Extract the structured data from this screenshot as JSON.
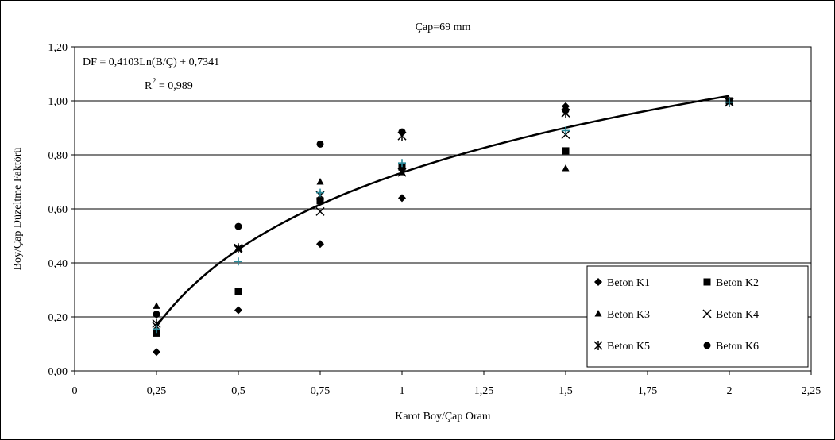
{
  "chart_data": {
    "type": "scatter",
    "title": "Çap=69 mm",
    "xlabel": "Karot Boy/Çap Oranı",
    "ylabel": "Boy/Çap Düzeltme Faktörü",
    "xlim": [
      0,
      2.25
    ],
    "ylim": [
      0,
      1.2
    ],
    "x_ticks": [
      0,
      0.25,
      0.5,
      0.75,
      1,
      1.25,
      1.5,
      1.75,
      2,
      2.25
    ],
    "x_tick_labels": [
      "0",
      "0,25",
      "0,5",
      "0,75",
      "1",
      "1,25",
      "1,5",
      "1,75",
      "2",
      "2,25"
    ],
    "y_ticks": [
      0,
      0.2,
      0.4,
      0.6,
      0.8,
      1.0,
      1.2
    ],
    "y_tick_labels": [
      "0,00",
      "0,20",
      "0,40",
      "0,60",
      "0,80",
      "1,00",
      "1,20"
    ],
    "grid": "horizontal",
    "legend_position": "bottom-right",
    "equation": "DF = 0,4103Ln(B/Ç) + 0,7341",
    "r2_prefix": "R",
    "r2_sup": "2",
    "r2_value": " = 0,989",
    "trendline": {
      "type": "log",
      "a": 0.4103,
      "b": 0.7341,
      "x_from": 0.25,
      "x_to": 2
    },
    "series": [
      {
        "name": "Beton K1",
        "marker": "diamond",
        "x": [
          0.25,
          0.5,
          0.75,
          1,
          1.5,
          2
        ],
        "y": [
          0.07,
          0.225,
          0.47,
          0.64,
          0.98,
          1.0
        ]
      },
      {
        "name": "Beton K2",
        "marker": "square",
        "x": [
          0.25,
          0.5,
          0.75,
          1,
          1.5,
          2
        ],
        "y": [
          0.14,
          0.295,
          0.63,
          0.755,
          0.815,
          1.0
        ]
      },
      {
        "name": "Beton K3",
        "marker": "triangle",
        "x": [
          0.25,
          0.5,
          0.75,
          1,
          1.5,
          2
        ],
        "y": [
          0.24,
          0.455,
          0.7,
          0.735,
          0.75,
          1.0
        ]
      },
      {
        "name": "Beton K4",
        "marker": "x",
        "x": [
          0.25,
          0.5,
          0.75,
          1,
          1.5,
          2
        ],
        "y": [
          0.165,
          0.45,
          0.59,
          0.735,
          0.875,
          0.995
        ]
      },
      {
        "name": "Beton K5",
        "marker": "star",
        "x": [
          0.25,
          0.5,
          0.75,
          1,
          1.5,
          2
        ],
        "y": [
          0.175,
          0.455,
          0.65,
          0.87,
          0.955,
          0.995
        ]
      },
      {
        "name": "Beton K6",
        "marker": "circle",
        "x": [
          0.25,
          0.5,
          0.75,
          1,
          1.5,
          2
        ],
        "y": [
          0.21,
          0.535,
          0.84,
          0.885,
          0.965,
          1.0
        ]
      },
      {
        "name": "",
        "marker": "plus",
        "color": "#2a8a9a",
        "x": [
          0.25,
          0.5,
          0.75,
          1,
          1.5,
          2
        ],
        "y": [
          0.155,
          0.405,
          0.66,
          0.77,
          0.89,
          0.995
        ]
      }
    ]
  }
}
